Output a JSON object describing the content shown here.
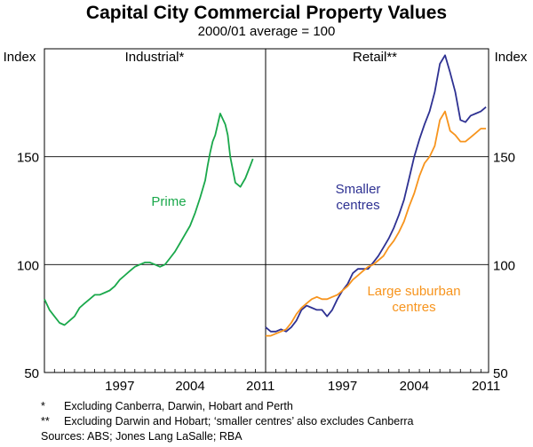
{
  "chart_data": {
    "type": "line",
    "title": "Capital City Commercial Property Values",
    "subtitle": "2000/01 average = 100",
    "yaxis_label": "Index",
    "ylim": [
      50,
      200
    ],
    "yticks": [
      50,
      100,
      150
    ],
    "xlim": [
      1990.0,
      2011.75
    ],
    "xticks": [
      1997,
      2004,
      2011
    ],
    "grid": "horizontal",
    "panels": [
      {
        "title": "Industrial*",
        "series": [
          {
            "name": "Prime",
            "color": "#1aa84b",
            "x": [
              1990.0,
              1990.5,
              1991.0,
              1991.5,
              1992.0,
              1992.5,
              1993.0,
              1993.5,
              1994.0,
              1994.5,
              1995.0,
              1995.5,
              1996.0,
              1996.5,
              1997.0,
              1997.5,
              1998.0,
              1998.5,
              1999.0,
              1999.5,
              2000.0,
              2000.5,
              2001.0,
              2001.5,
              2002.0,
              2002.5,
              2003.0,
              2003.5,
              2004.0,
              2004.5,
              2005.0,
              2005.5,
              2006.0,
              2006.25,
              2006.5,
              2006.75,
              2007.0,
              2007.5,
              2008.0,
              2008.25,
              2008.5,
              2009.0,
              2009.5,
              2010.0,
              2010.5,
              2010.75
            ],
            "values": [
              84,
              79,
              76,
              73,
              72,
              74,
              76,
              80,
              82,
              84,
              86,
              86,
              87,
              88,
              90,
              93,
              95,
              97,
              99,
              100,
              101,
              101,
              100,
              99,
              100,
              103,
              106,
              110,
              114,
              118,
              124,
              131,
              139,
              146,
              152,
              157,
              160,
              170,
              165,
              160,
              150,
              138,
              136,
              140,
              146,
              149
            ]
          }
        ]
      },
      {
        "title": "Retail**",
        "series": [
          {
            "name": "Smaller centres",
            "label_lines": [
              "Smaller",
              "centres"
            ],
            "color": "#2e3192",
            "x": [
              1990.0,
              1990.5,
              1991.0,
              1991.5,
              1992.0,
              1992.5,
              1993.0,
              1993.5,
              1994.0,
              1994.5,
              1995.0,
              1995.5,
              1996.0,
              1996.5,
              1997.0,
              1997.5,
              1998.0,
              1998.5,
              1999.0,
              1999.5,
              2000.0,
              2000.5,
              2001.0,
              2001.5,
              2002.0,
              2002.5,
              2003.0,
              2003.5,
              2004.0,
              2004.5,
              2005.0,
              2005.5,
              2006.0,
              2006.5,
              2007.0,
              2007.5,
              2008.0,
              2008.5,
              2009.0,
              2009.5,
              2010.0,
              2010.5,
              2011.0,
              2011.5
            ],
            "values": [
              71,
              69,
              69,
              70,
              69,
              71,
              74,
              79,
              81,
              80,
              79,
              79,
              76,
              79,
              84,
              88,
              91,
              96,
              98,
              98,
              98,
              101,
              104,
              108,
              112,
              117,
              123,
              130,
              140,
              150,
              158,
              165,
              171,
              180,
              193,
              197,
              189,
              180,
              167,
              166,
              169,
              170,
              171,
              173
            ]
          },
          {
            "name": "Large suburban centres",
            "label_lines": [
              "Large suburban",
              "centres"
            ],
            "color": "#f7941d",
            "x": [
              1990.0,
              1990.5,
              1991.0,
              1991.5,
              1992.0,
              1992.5,
              1993.0,
              1993.5,
              1994.0,
              1994.5,
              1995.0,
              1995.5,
              1996.0,
              1996.5,
              1997.0,
              1997.5,
              1998.0,
              1998.5,
              1999.0,
              1999.5,
              2000.0,
              2000.5,
              2001.0,
              2001.5,
              2002.0,
              2002.5,
              2003.0,
              2003.5,
              2004.0,
              2004.5,
              2005.0,
              2005.5,
              2006.0,
              2006.5,
              2007.0,
              2007.5,
              2008.0,
              2008.5,
              2009.0,
              2009.5,
              2010.0,
              2010.5,
              2011.0,
              2011.5
            ],
            "values": [
              67,
              67,
              68,
              69,
              70,
              73,
              77,
              80,
              82,
              84,
              85,
              84,
              84,
              85,
              86,
              88,
              90,
              93,
              95,
              97,
              99,
              100,
              102,
              104,
              108,
              111,
              115,
              120,
              127,
              133,
              141,
              147,
              150,
              155,
              167,
              171,
              162,
              160,
              157,
              157,
              159,
              161,
              163,
              163
            ]
          }
        ]
      }
    ]
  },
  "footnotes": [
    {
      "marker": "*",
      "text": "Excluding Canberra, Darwin, Hobart and Perth"
    },
    {
      "marker": "**",
      "text": "Excluding Darwin and Hobart; ‘smaller centres’ also excludes Canberra"
    }
  ],
  "sources": "Sources: ABS; Jones Lang LaSalle; RBA"
}
